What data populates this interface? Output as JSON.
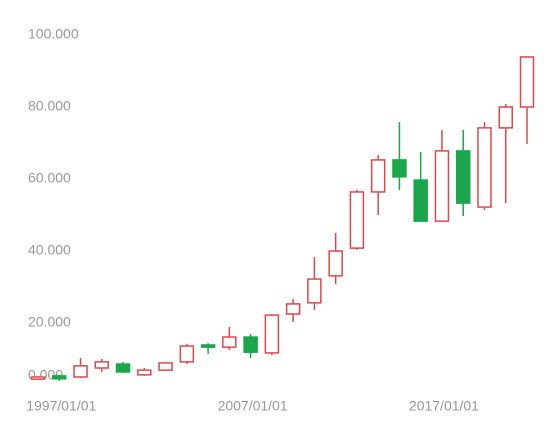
{
  "chart_data": {
    "type": "candlestick",
    "categories": [
      null,
      "1997/01/01",
      null,
      null,
      null,
      null,
      null,
      null,
      null,
      null,
      "2007/01/01",
      null,
      null,
      null,
      null,
      null,
      null,
      null,
      null,
      "2017/01/01",
      null,
      null,
      null,
      null
    ],
    "open": [
      4.4,
      5.3,
      5.0,
      7.5,
      8.6,
      5.6,
      6.9,
      9.2,
      13.9,
      13.3,
      16.1,
      11.7,
      22.5,
      25.6,
      33.1,
      40.8,
      56.4,
      65.3,
      59.7,
      48.3,
      67.8,
      52.2,
      74.2,
      80.0
    ],
    "high": [
      5.3,
      5.6,
      10.3,
      10.0,
      9.2,
      7.5,
      9.2,
      14.2,
      14.4,
      18.9,
      17.0,
      22.5,
      26.7,
      38.3,
      45.0,
      57.0,
      66.7,
      75.8,
      67.5,
      73.6,
      73.6,
      75.8,
      80.8,
      93.9
    ],
    "low": [
      4.2,
      3.9,
      4.7,
      6.4,
      6.1,
      5.3,
      6.7,
      8.6,
      11.4,
      12.5,
      10.3,
      11.1,
      20.3,
      23.6,
      30.8,
      40.3,
      50.0,
      56.9,
      48.3,
      48.3,
      49.7,
      51.4,
      53.3,
      69.7
    ],
    "close": [
      5.0,
      4.5,
      8.1,
      9.2,
      6.4,
      6.9,
      8.9,
      13.6,
      13.3,
      16.1,
      11.9,
      22.2,
      25.3,
      32.2,
      40.0,
      56.4,
      65.3,
      60.6,
      48.3,
      67.8,
      53.3,
      74.2,
      80.0,
      93.9
    ],
    "up_color": "#e0474c",
    "down_color": "#1aa64a",
    "ylim": [
      0,
      100
    ],
    "yticks": [
      {
        "value": 0,
        "label": "0.000"
      },
      {
        "value": 20,
        "label": "20.000"
      },
      {
        "value": 40,
        "label": "40.000"
      },
      {
        "value": 60,
        "label": "60.000"
      },
      {
        "value": 80,
        "label": "80.000"
      },
      {
        "value": 100,
        "label": "100.000"
      }
    ],
    "grid": false
  }
}
